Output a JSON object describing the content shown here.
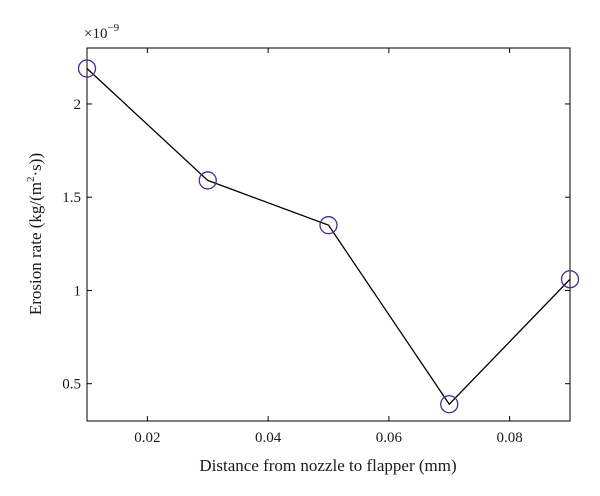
{
  "chart_data": {
    "type": "line",
    "title": "",
    "xlabel": "Distance from nozzle to flapper (mm)",
    "ylabel_main": "Erosion rate (kg/(m",
    "ylabel_sup": "2",
    "ylabel_end": "·s))",
    "y_multiplier": "×10",
    "y_multiplier_exp": "−9",
    "xlim": [
      0.01,
      0.09
    ],
    "ylim": [
      0.3,
      2.3
    ],
    "xticks": [
      0.02,
      0.04,
      0.06,
      0.08
    ],
    "xtick_labels": [
      "0.02",
      "0.04",
      "0.06",
      "0.08"
    ],
    "yticks": [
      0.5,
      1,
      1.5,
      2
    ],
    "ytick_labels": [
      "0.5",
      "1",
      "1.5",
      "2"
    ],
    "grid": false,
    "series": [
      {
        "x": [
          0.01,
          0.03,
          0.05,
          0.07,
          0.09
        ],
        "y": [
          2.19,
          1.59,
          1.35,
          0.39,
          1.06
        ],
        "line_color": "#000000",
        "marker": "circle",
        "marker_color": "#4b2a8c"
      }
    ]
  }
}
